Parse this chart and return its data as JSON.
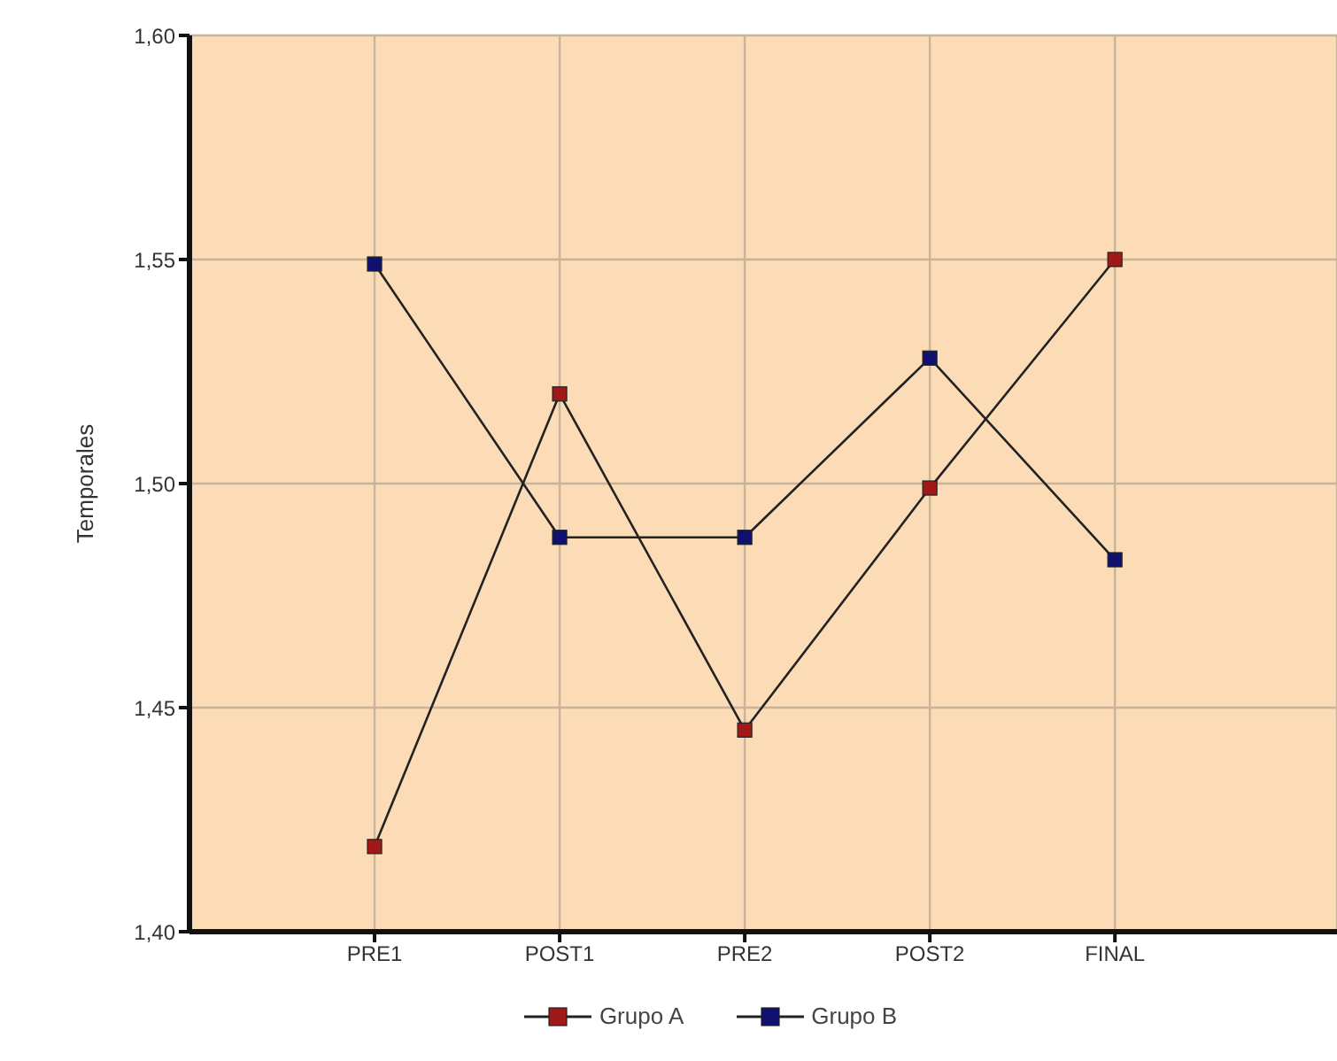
{
  "chart_data": {
    "type": "line",
    "ylabel": "Temporales",
    "categories": [
      "PRE1",
      "POST1",
      "PRE2",
      "POST2",
      "FINAL"
    ],
    "series": [
      {
        "name": "Grupo A",
        "color": "#a01818",
        "values": [
          1.419,
          1.52,
          1.445,
          1.499,
          1.55
        ]
      },
      {
        "name": "Grupo B",
        "color": "#101070",
        "values": [
          1.549,
          1.488,
          1.488,
          1.528,
          1.483
        ]
      }
    ],
    "ylim": [
      1.4,
      1.6
    ],
    "yticks": [
      {
        "value": 1.4,
        "label": "1,40"
      },
      {
        "value": 1.45,
        "label": "1,45"
      },
      {
        "value": 1.5,
        "label": "1,50"
      },
      {
        "value": 1.55,
        "label": "1,55"
      },
      {
        "value": 1.6,
        "label": "1,60"
      }
    ],
    "grid": true,
    "legend": "bottom",
    "marker": "square",
    "line_style": "solid"
  }
}
